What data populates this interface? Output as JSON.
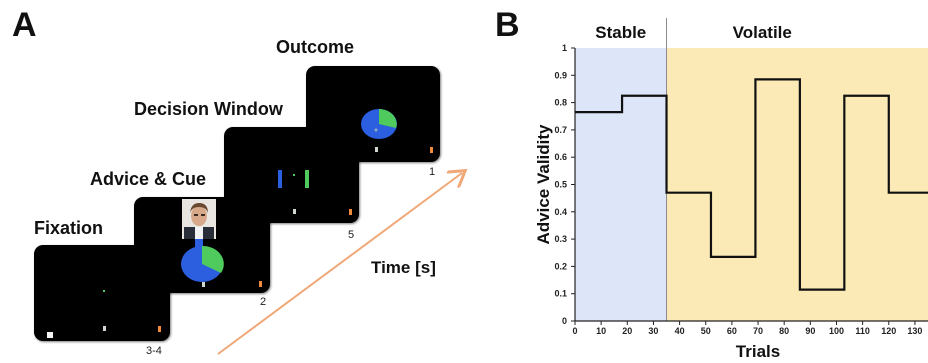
{
  "panel_a": {
    "letter": "A",
    "stages": [
      {
        "title": "Fixation",
        "duration": "3-4"
      },
      {
        "title": "Advice & Cue",
        "duration": "2"
      },
      {
        "title": "Decision Window",
        "duration": "5"
      },
      {
        "title": "Outcome",
        "duration": "1"
      }
    ],
    "time_axis_label": "Time [s]",
    "colors": {
      "arrow": "#f0a878",
      "pie_blue": "#2b5fe0",
      "pie_green": "#4ecb5c",
      "marker_orange": "#f08a3c",
      "marker_gray": "#cfd8cc"
    }
  },
  "panel_b": {
    "letter": "B",
    "regions": [
      {
        "label": "Stable",
        "from": 0,
        "to": 35,
        "color": "#dce6f8"
      },
      {
        "label": "Volatile",
        "from": 35,
        "to": 135,
        "color": "#fbeab5"
      }
    ]
  },
  "chart_data": {
    "type": "line",
    "xlabel": "Trials",
    "ylabel": "Advice Validity",
    "xlim": [
      0,
      135
    ],
    "ylim": [
      0,
      1
    ],
    "xticks": [
      0,
      10,
      20,
      30,
      40,
      50,
      60,
      70,
      80,
      90,
      100,
      110,
      120,
      130
    ],
    "yticks": [
      0,
      0.1,
      0.2,
      0.3,
      0.4,
      0.5,
      0.6,
      0.7,
      0.8,
      0.9,
      1
    ],
    "ytick_labels": [
      "0",
      "0.1",
      "0.2",
      "0.3",
      "0.4",
      "0.5",
      "0.6",
      "0.7",
      "0.8",
      "0.9",
      "1"
    ],
    "series": [
      {
        "x": [
          0,
          18,
          18,
          35,
          35,
          52,
          52,
          69,
          69,
          86,
          86,
          103,
          103,
          120,
          120,
          135
        ],
        "y": [
          0.765,
          0.765,
          0.825,
          0.825,
          0.47,
          0.47,
          0.235,
          0.235,
          0.885,
          0.885,
          0.115,
          0.115,
          0.825,
          0.825,
          0.47,
          0.47
        ]
      }
    ],
    "grid": false
  }
}
